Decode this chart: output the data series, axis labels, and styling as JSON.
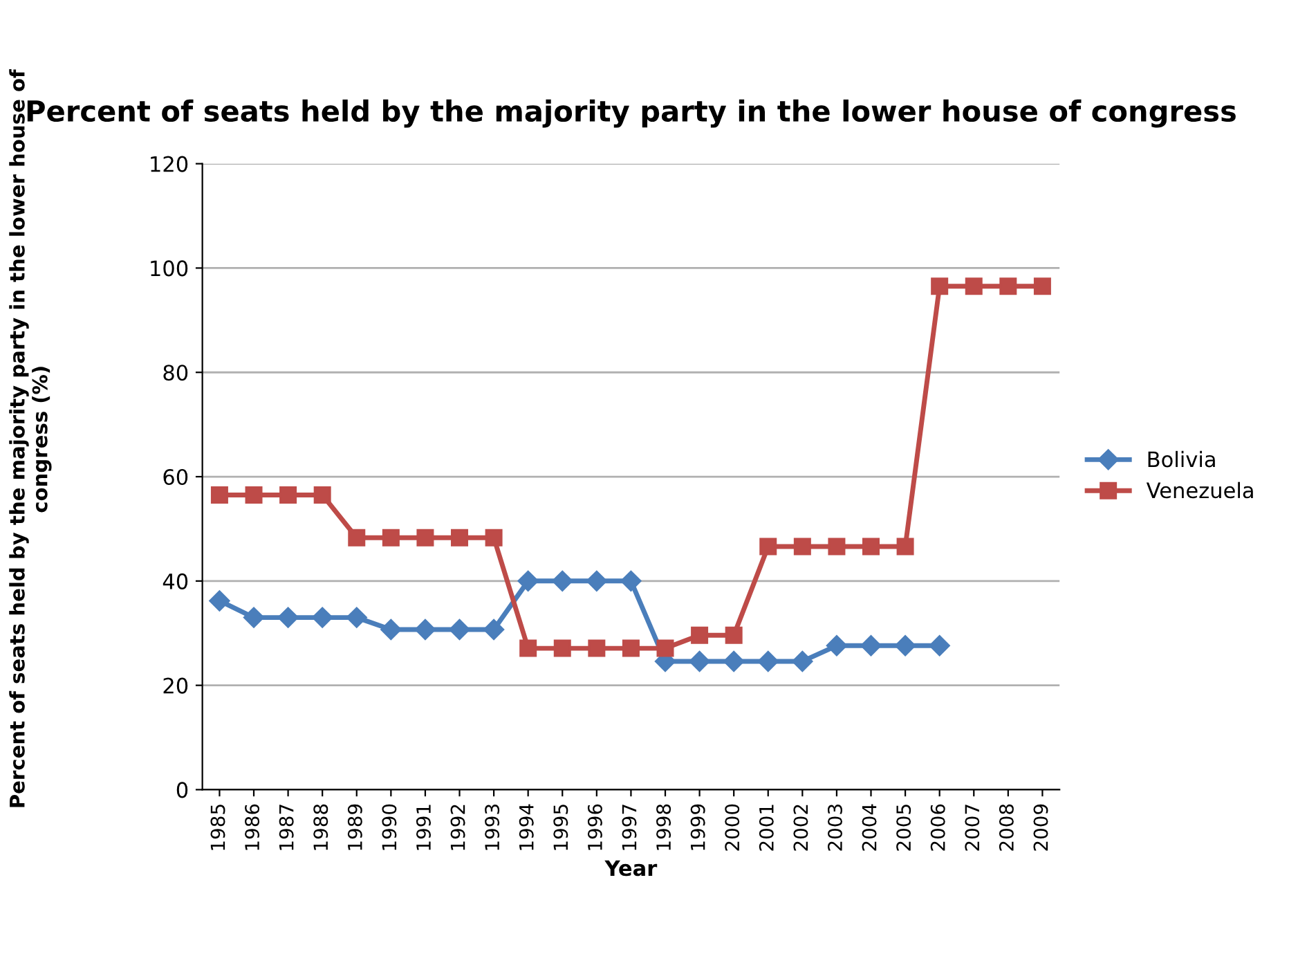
{
  "chart_data": {
    "type": "line",
    "title": "Percent of seats held by the majority party in the lower house of congress",
    "xlabel": "Year",
    "ylabel": "Percent of seats held by the majority party in the lower house of congress (%)",
    "categories": [
      "1985",
      "1986",
      "1987",
      "1988",
      "1989",
      "1990",
      "1991",
      "1992",
      "1993",
      "1994",
      "1995",
      "1996",
      "1997",
      "1998",
      "1999",
      "2000",
      "2001",
      "2002",
      "2003",
      "2004",
      "2005",
      "2006",
      "2007",
      "2008",
      "2009"
    ],
    "series": [
      {
        "name": "Bolivia",
        "color": "#4a7ebb",
        "marker": "diamond",
        "values": [
          36.2,
          33,
          33,
          33,
          33,
          30.7,
          30.7,
          30.7,
          30.7,
          40,
          40,
          40,
          40,
          24.6,
          24.6,
          24.6,
          24.6,
          24.6,
          27.6,
          27.6,
          27.6,
          27.6,
          null,
          null,
          null
        ]
      },
      {
        "name": "Venezuela",
        "color": "#be4b48",
        "marker": "square",
        "values": [
          56.5,
          56.5,
          56.5,
          56.5,
          48.3,
          48.3,
          48.3,
          48.3,
          48.3,
          27.1,
          27.1,
          27.1,
          27.1,
          27.1,
          29.6,
          29.6,
          46.6,
          46.6,
          46.6,
          46.6,
          46.6,
          96.5,
          96.5,
          96.5,
          96.5
        ]
      }
    ],
    "ylim": [
      0,
      120
    ],
    "yticks": [
      0,
      20,
      40,
      60,
      80,
      100,
      120
    ],
    "grid": "y",
    "legend": "right",
    "line_style": "solid"
  }
}
